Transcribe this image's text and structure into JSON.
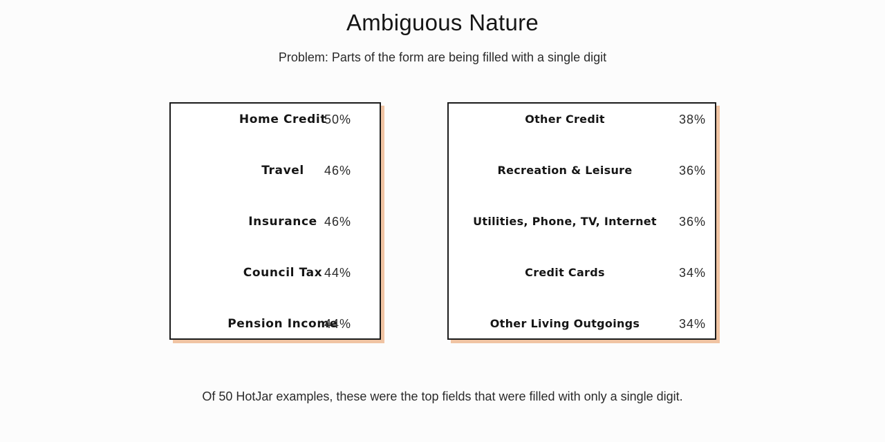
{
  "slide": {
    "title": "Ambiguous Nature",
    "subtitle": "Problem: Parts of the form are being filled with a single digit",
    "footnote": "Of 50 HotJar examples, these were the top fields that were filled with only a single digit."
  },
  "colors": {
    "card_shadow": "#f0c4a3",
    "card_border": "#1a1a1a",
    "background": "#fcfcfc"
  },
  "left_card": {
    "rows": [
      {
        "label": "Home Credit",
        "percent": "50%"
      },
      {
        "label": "Travel",
        "percent": "46%"
      },
      {
        "label": "Insurance",
        "percent": "46%"
      },
      {
        "label": "Council Tax",
        "percent": "44%"
      },
      {
        "label": "Pension Income",
        "percent": "44%"
      }
    ]
  },
  "right_card": {
    "rows": [
      {
        "label": "Other Credit",
        "percent": "38%"
      },
      {
        "label": "Recreation & Leisure",
        "percent": "36%"
      },
      {
        "label": "Utilities, Phone, TV, Internet",
        "percent": "36%"
      },
      {
        "label": "Credit Cards",
        "percent": "34%"
      },
      {
        "label": "Other Living Outgoings",
        "percent": "34%"
      }
    ]
  }
}
